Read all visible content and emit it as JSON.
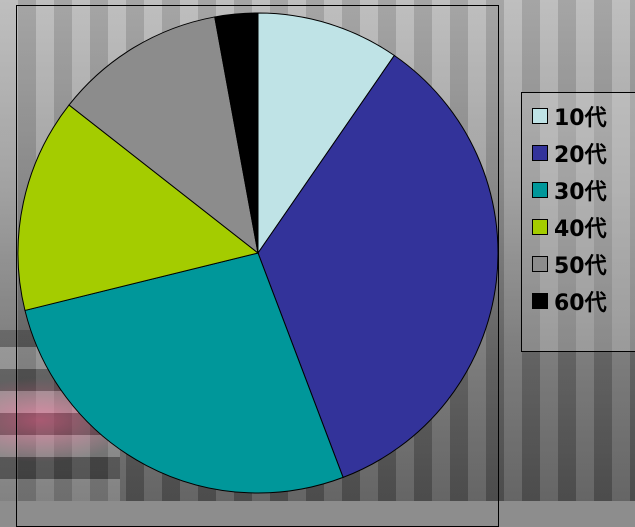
{
  "chart_data": {
    "type": "pie",
    "title": "",
    "categories": [
      "10代",
      "20代",
      "30代",
      "40代",
      "50代",
      "60代"
    ],
    "values": [
      10,
      36,
      28,
      15,
      12,
      3
    ],
    "colors": [
      "#bfe3e6",
      "#33339a",
      "#00979a",
      "#a4cc00",
      "#8c8c8c",
      "#000000"
    ],
    "legend": "right",
    "start_angle_deg": 0,
    "direction": "clockwise"
  }
}
